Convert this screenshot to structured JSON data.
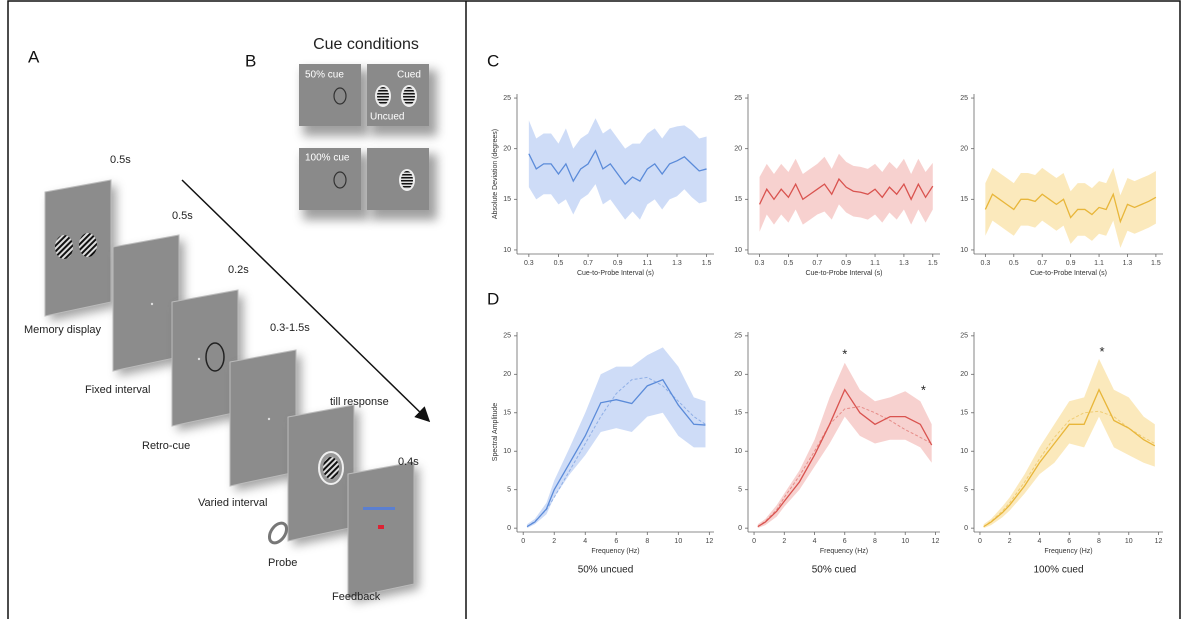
{
  "panels": {
    "a": {
      "label": "A",
      "screens": [
        {
          "duration": "0.5s",
          "name": "Memory display"
        },
        {
          "duration": "0.5s",
          "name": "Fixed interval"
        },
        {
          "duration": "0.2s",
          "name": "Retro-cue"
        },
        {
          "duration": "0.3-1.5s",
          "name": "Varied interval"
        },
        {
          "duration": "till response",
          "name": "Probe"
        },
        {
          "duration": "0.4s",
          "name": "Feedback"
        }
      ]
    },
    "b": {
      "label": "B",
      "title": "Cue conditions",
      "labels": [
        "50% cue",
        "Cued",
        "Uncued",
        "100% cue"
      ]
    },
    "c": {
      "label": "C"
    },
    "d": {
      "label": "D"
    }
  },
  "chart_data": [
    {
      "type": "line",
      "color": "#5b8bd9",
      "band_color": "#c6d6f6",
      "ylabel": "Absolute Deviation (degrees)",
      "xlabel": "Cue-to-Probe Interval (s)",
      "x": [
        0.3,
        0.35,
        0.4,
        0.45,
        0.5,
        0.55,
        0.6,
        0.65,
        0.7,
        0.75,
        0.8,
        0.85,
        0.9,
        0.95,
        1.0,
        1.05,
        1.1,
        1.15,
        1.2,
        1.25,
        1.3,
        1.35,
        1.4,
        1.45,
        1.5
      ],
      "values": [
        19.5,
        18,
        18.5,
        18.5,
        17.5,
        18.5,
        16.8,
        18,
        18.5,
        19.8,
        18,
        18.5,
        17.5,
        16.5,
        17.2,
        16.8,
        18,
        18.5,
        17.5,
        18.5,
        18.8,
        19.2,
        18.5,
        17.8,
        18
      ],
      "upper": [
        22.8,
        21,
        21.5,
        21.5,
        20.5,
        22,
        20,
        21,
        21.5,
        23,
        21.5,
        22,
        21,
        20,
        20.5,
        20.5,
        21.5,
        22,
        21,
        22,
        22.2,
        22.3,
        21.8,
        21,
        21.2
      ],
      "lower": [
        16.2,
        15,
        15.5,
        15.5,
        14.5,
        15,
        13.5,
        15,
        15.5,
        16.5,
        14.5,
        15,
        14,
        13,
        13.8,
        13,
        14.5,
        15,
        14,
        15,
        15.3,
        16,
        15.2,
        14.6,
        14.8
      ],
      "xlim": [
        0.22,
        1.55
      ],
      "ylim": [
        9.6,
        25.4
      ],
      "xticks": [
        0.3,
        0.5,
        0.7,
        0.9,
        1.1,
        1.3,
        1.5
      ],
      "yticks": [
        10,
        15,
        20,
        25
      ]
    },
    {
      "type": "line",
      "color": "#d9534f",
      "band_color": "#f6c9c7",
      "xlabel": "Cue-to-Probe Interval (s)",
      "x": [
        0.3,
        0.35,
        0.4,
        0.45,
        0.5,
        0.55,
        0.6,
        0.65,
        0.7,
        0.75,
        0.8,
        0.85,
        0.9,
        0.95,
        1.0,
        1.05,
        1.1,
        1.15,
        1.2,
        1.25,
        1.3,
        1.35,
        1.4,
        1.45,
        1.5
      ],
      "values": [
        14.5,
        16,
        15,
        16,
        15.2,
        16.5,
        15,
        15.5,
        16,
        16.5,
        15.5,
        17,
        16.2,
        15.8,
        15.7,
        15.5,
        16,
        15.2,
        16.2,
        15.5,
        16.5,
        15,
        16.5,
        15.2,
        16.3
      ],
      "upper": [
        17.2,
        18.5,
        17.5,
        18.5,
        17.7,
        19,
        17.5,
        18,
        18.5,
        19.2,
        18,
        19.5,
        18.7,
        18.3,
        18.2,
        18,
        18.5,
        17.7,
        18.7,
        18,
        19,
        17.5,
        19,
        17.7,
        18.6
      ],
      "lower": [
        11.8,
        13.5,
        12.5,
        13.5,
        12.7,
        14,
        12.5,
        13,
        13.5,
        13.8,
        13,
        14.5,
        13.7,
        13.3,
        13.2,
        13,
        13.5,
        12.7,
        13.7,
        13,
        14,
        12.5,
        14,
        12.7,
        14
      ],
      "xlim": [
        0.22,
        1.55
      ],
      "ylim": [
        9.6,
        25.4
      ],
      "xticks": [
        0.3,
        0.5,
        0.7,
        0.9,
        1.1,
        1.3,
        1.5
      ],
      "yticks": [
        10,
        15,
        20,
        25
      ]
    },
    {
      "type": "line",
      "color": "#e8b63a",
      "band_color": "#fae5b0",
      "xlabel": "Cue-to-Probe Interval (s)",
      "x": [
        0.3,
        0.35,
        0.4,
        0.45,
        0.5,
        0.55,
        0.6,
        0.65,
        0.7,
        0.75,
        0.8,
        0.85,
        0.9,
        0.95,
        1.0,
        1.05,
        1.1,
        1.15,
        1.2,
        1.25,
        1.3,
        1.35,
        1.4,
        1.45,
        1.5
      ],
      "values": [
        14,
        15.5,
        15,
        14.5,
        14,
        15,
        15,
        14.8,
        15.5,
        15,
        14.5,
        15,
        13.2,
        14,
        14,
        13.5,
        14.2,
        14,
        15.5,
        12.8,
        14.5,
        14.2,
        14.5,
        14.8,
        15.2
      ],
      "upper": [
        16.6,
        18.1,
        17.6,
        17.1,
        16.6,
        17.6,
        17.6,
        17.4,
        18.1,
        17.6,
        17.1,
        17.6,
        15.8,
        16.6,
        16.6,
        16.1,
        16.8,
        16.6,
        18.1,
        15.4,
        17.1,
        16.8,
        17.1,
        17.4,
        17.8
      ],
      "lower": [
        11.4,
        12.9,
        12.4,
        11.9,
        11.4,
        12.4,
        12.4,
        12.2,
        12.9,
        12.4,
        11.9,
        12.4,
        10.6,
        11.4,
        11.4,
        10.9,
        11.6,
        11.4,
        12.9,
        10.2,
        11.9,
        11.6,
        11.9,
        12.2,
        12.6
      ],
      "xlim": [
        0.22,
        1.55
      ],
      "ylim": [
        9.6,
        25.4
      ],
      "xticks": [
        0.3,
        0.5,
        0.7,
        0.9,
        1.1,
        1.3,
        1.5
      ],
      "yticks": [
        10,
        15,
        20,
        25
      ]
    },
    {
      "type": "line",
      "color": "#5b8bd9",
      "band_color": "#c6d6f6",
      "ylabel": "Spectral Amplitude",
      "xlabel": "Frequency (Hz)",
      "caption": "50% uncued",
      "x": [
        0.25,
        0.75,
        1.5,
        2,
        3,
        4,
        5,
        6,
        7,
        8,
        9,
        10,
        11,
        11.75
      ],
      "values": [
        0.2,
        0.8,
        2.5,
        5,
        8.5,
        12,
        16.3,
        16.7,
        16.2,
        18.5,
        19.3,
        16,
        13.5,
        13.4
      ],
      "upper": [
        0.5,
        1.2,
        3.3,
        6.2,
        10.5,
        15,
        20,
        21,
        21,
        22.5,
        23.5,
        21,
        17,
        16.5
      ],
      "lower": [
        0,
        0.5,
        1.8,
        4,
        7,
        9.5,
        12.5,
        13,
        12.5,
        14.5,
        15,
        12,
        10.5,
        10.5
      ],
      "fit": [
        0.2,
        0.9,
        2.4,
        4,
        7.5,
        11,
        14.5,
        17.5,
        19.3,
        19.6,
        18.5,
        16.5,
        14.5,
        13.5
      ],
      "xlim": [
        -0.4,
        12.3
      ],
      "ylim": [
        -0.5,
        25.5
      ],
      "xticks": [
        0,
        2,
        4,
        6,
        8,
        10,
        12
      ],
      "yticks": [
        0,
        5,
        10,
        15,
        20,
        25
      ]
    },
    {
      "type": "line",
      "color": "#d9534f",
      "band_color": "#f6c9c7",
      "xlabel": "Frequency (Hz)",
      "caption": "50% cued",
      "x": [
        0.25,
        0.75,
        1.5,
        2,
        3,
        4,
        5,
        6,
        7,
        8,
        9,
        10,
        11,
        11.75
      ],
      "values": [
        0.2,
        0.8,
        2.2,
        3.5,
        6,
        9.5,
        13.5,
        18,
        15,
        13.5,
        14.5,
        14.5,
        13.5,
        10.8
      ],
      "upper": [
        0.5,
        1.2,
        3,
        4.5,
        7.5,
        11.5,
        17,
        21.5,
        18,
        16.5,
        17,
        17.8,
        16.5,
        13.5
      ],
      "lower": [
        0,
        0.4,
        1.5,
        2.8,
        5,
        8,
        11,
        14.5,
        12,
        11,
        11.5,
        11.5,
        10.5,
        8.5
      ],
      "fit": [
        0.2,
        0.9,
        2.4,
        4,
        6.8,
        10,
        13.5,
        15.5,
        15.8,
        15,
        14,
        12.8,
        11.8,
        11
      ],
      "annotations": [
        {
          "text": "*",
          "x": 6,
          "y": 22.5
        },
        {
          "text": "*",
          "x": 11.2,
          "y": 17.8
        }
      ],
      "xlim": [
        -0.4,
        12.3
      ],
      "ylim": [
        -0.5,
        25.5
      ],
      "xticks": [
        0,
        2,
        4,
        6,
        8,
        10,
        12
      ],
      "yticks": [
        0,
        5,
        10,
        15,
        20,
        25
      ]
    },
    {
      "type": "line",
      "color": "#e8b63a",
      "band_color": "#fae5b0",
      "xlabel": "Frequency (Hz)",
      "caption": "100% cued",
      "x": [
        0.25,
        0.75,
        1.5,
        2,
        3,
        4,
        5,
        6,
        7,
        8,
        9,
        10,
        11,
        11.75
      ],
      "values": [
        0.2,
        0.8,
        2,
        3,
        5.5,
        8.5,
        11,
        13.5,
        13.5,
        18,
        14,
        13,
        11.5,
        10.7
      ],
      "upper": [
        0.5,
        1.2,
        2.8,
        4,
        7,
        10.5,
        13.5,
        16.5,
        17,
        22,
        18,
        17,
        14.5,
        13.5
      ],
      "lower": [
        0,
        0.4,
        1.4,
        2.3,
        4.5,
        7,
        8.5,
        11,
        10.5,
        14.5,
        10.5,
        9.5,
        8.5,
        8
      ],
      "fit": [
        0.2,
        0.9,
        2.2,
        3.3,
        6,
        9,
        11.8,
        14,
        15,
        15.2,
        14.5,
        13,
        11.8,
        11
      ],
      "annotations": [
        {
          "text": "*",
          "x": 8.2,
          "y": 22.8
        }
      ],
      "xlim": [
        -0.4,
        12.3
      ],
      "ylim": [
        -0.5,
        25.5
      ],
      "xticks": [
        0,
        2,
        4,
        6,
        8,
        10,
        12
      ],
      "yticks": [
        0,
        5,
        10,
        15,
        20,
        25
      ]
    }
  ]
}
